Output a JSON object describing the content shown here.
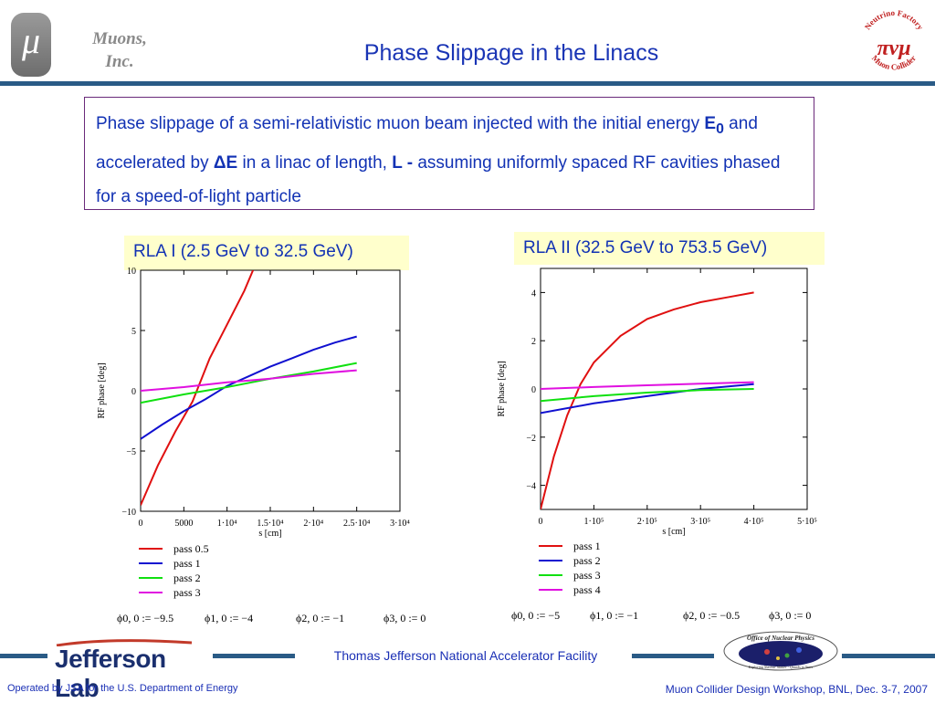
{
  "header": {
    "logo_symbol": "μ",
    "company_line1": "Muons,",
    "company_line2": "Inc.",
    "title": "Phase Slippage in the Linacs",
    "nf_logo_text_top": "Neutrino Factory",
    "nf_logo_text_bottom": "Muon Collider",
    "nf_logo_symbol": "πνμ"
  },
  "description": {
    "part1": "Phase slippage of a semi-relativistic muon beam injected with the initial energy ",
    "e0": "E",
    "e0_sub": "0",
    "part2": " and accelerated by ",
    "delta": "Δ",
    "deltaE": "E",
    "part3": " in a linac of length, ",
    "L": "L",
    "dash": "  -",
    "part4": " assuming uniformly spaced RF cavities phased for a speed-of-light particle"
  },
  "rla1": {
    "label": "RLA I (2.5 GeV to 32.5 GeV)",
    "params": [
      "ϕ0, 0 := −9.5",
      "ϕ1, 0 := −4",
      "ϕ2, 0 := −1",
      "ϕ3, 0 := 0"
    ]
  },
  "rla2": {
    "label": "RLA II (32.5 GeV to 753.5 GeV)",
    "params": [
      "ϕ0, 0 := −5",
      "ϕ1, 0 := −1",
      "ϕ2, 0 := −0.5",
      "ϕ3, 0 := 0"
    ]
  },
  "chart_data": [
    {
      "type": "line",
      "title": "RLA I (2.5 GeV to 32.5 GeV)",
      "xlabel": "s [cm]",
      "ylabel": "RF phase [deg]",
      "xlim": [
        0,
        30000
      ],
      "ylim": [
        -10,
        10
      ],
      "xticks": [
        "0",
        "5000",
        "1·10⁴",
        "1.5·10⁴",
        "2·10⁴",
        "2.5·10⁴",
        "3·10⁴"
      ],
      "xtick_values": [
        0,
        5000,
        10000,
        15000,
        20000,
        25000,
        30000
      ],
      "yticks": [
        "10",
        "5",
        "0",
        "−5",
        "−10"
      ],
      "ytick_values": [
        10,
        5,
        0,
        -5,
        -10
      ],
      "legend_placement": "below",
      "series": [
        {
          "name": "pass 0.5",
          "color": "#e01010",
          "x": [
            0,
            2000,
            4000,
            6000,
            8000,
            10000,
            12000,
            13000
          ],
          "y": [
            -9.5,
            -6.2,
            -3.4,
            -0.9,
            2.7,
            5.5,
            8.3,
            10
          ]
        },
        {
          "name": "pass 1",
          "color": "#1010d0",
          "x": [
            0,
            2500,
            5000,
            7500,
            10000,
            12500,
            15000,
            17500,
            20000,
            22500,
            25000
          ],
          "y": [
            -4,
            -2.8,
            -1.7,
            -0.7,
            0.4,
            1.2,
            2.0,
            2.7,
            3.4,
            4.0,
            4.5
          ]
        },
        {
          "name": "pass 2",
          "color": "#10e010",
          "x": [
            0,
            5000,
            10000,
            15000,
            20000,
            25000
          ],
          "y": [
            -1,
            -0.3,
            0.3,
            1.0,
            1.6,
            2.3
          ]
        },
        {
          "name": "pass 3",
          "color": "#e010e0",
          "x": [
            0,
            5000,
            10000,
            15000,
            20000,
            25000
          ],
          "y": [
            0,
            0.3,
            0.7,
            1.0,
            1.4,
            1.7
          ]
        }
      ]
    },
    {
      "type": "line",
      "title": "RLA II (32.5 GeV to 753.5 GeV)",
      "xlabel": "s [cm]",
      "ylabel": "RF phase [deg]",
      "xlim": [
        0,
        500000
      ],
      "ylim": [
        -5,
        5
      ],
      "xticks": [
        "0",
        "1·10⁵",
        "2·10⁵",
        "3·10⁵",
        "4·10⁵",
        "5·10⁵"
      ],
      "xtick_values": [
        0,
        100000,
        200000,
        300000,
        400000,
        500000
      ],
      "yticks": [
        "4",
        "2",
        "0",
        "−2",
        "−4"
      ],
      "ytick_values": [
        4,
        2,
        0,
        -2,
        -4
      ],
      "legend_placement": "below",
      "series": [
        {
          "name": "pass 1",
          "color": "#e01010",
          "x": [
            0,
            25000,
            50000,
            75000,
            100000,
            150000,
            200000,
            250000,
            300000,
            350000,
            400000
          ],
          "y": [
            -5,
            -2.8,
            -1.1,
            0.2,
            1.1,
            2.2,
            2.9,
            3.3,
            3.6,
            3.8,
            4.0
          ]
        },
        {
          "name": "pass 2",
          "color": "#1010d0",
          "x": [
            0,
            100000,
            200000,
            300000,
            400000
          ],
          "y": [
            -1,
            -0.6,
            -0.3,
            0,
            0.2
          ]
        },
        {
          "name": "pass 3",
          "color": "#10e010",
          "x": [
            0,
            100000,
            200000,
            300000,
            400000
          ],
          "y": [
            -0.5,
            -0.3,
            -0.15,
            -0.05,
            0
          ]
        },
        {
          "name": "pass 4",
          "color": "#e010e0",
          "x": [
            0,
            100000,
            200000,
            300000,
            400000
          ],
          "y": [
            0,
            0.08,
            0.15,
            0.22,
            0.28
          ]
        }
      ]
    }
  ],
  "footer": {
    "jlab": "Jefferson Lab",
    "facility": "Thomas Jefferson National Accelerator Facility",
    "onp_title": "Office of Nuclear Physics",
    "onp_sub": "Exploring Nuclear Matter - Quarks to Stars",
    "left": "Operated by JSA for the U.S. Department of Energy",
    "right": "Muon Collider Design Workshop, BNL, Dec. 3-7, 2007"
  }
}
